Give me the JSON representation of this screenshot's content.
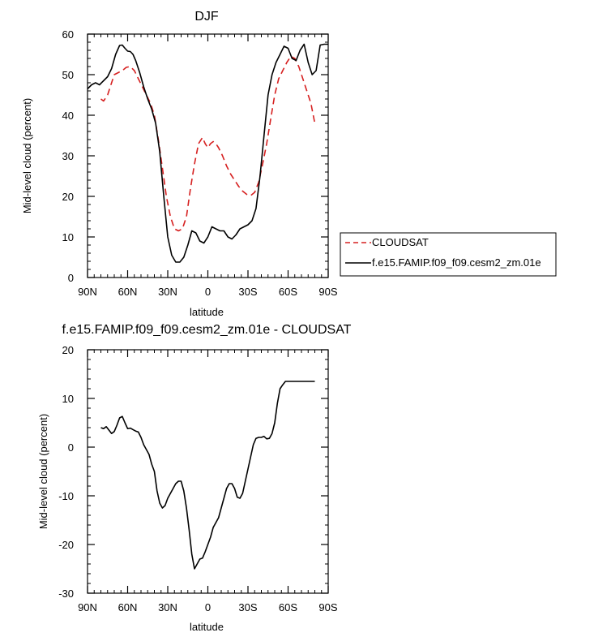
{
  "chart_data": [
    {
      "type": "line",
      "title": "DJF",
      "xlabel": "latitude",
      "ylabel": "Mid-level cloud (percent)",
      "xlim": [
        -90,
        90
      ],
      "ylim": [
        0,
        60
      ],
      "x_ticks": [
        -90,
        -60,
        -30,
        0,
        30,
        60,
        90
      ],
      "x_tick_labels": [
        "90N",
        "60N",
        "30N",
        "0",
        "30S",
        "60S",
        "90S"
      ],
      "y_ticks": [
        0,
        10,
        20,
        30,
        40,
        50,
        60
      ],
      "y_tick_labels": [
        "0",
        "10",
        "20",
        "30",
        "40",
        "50",
        "60"
      ],
      "legend": {
        "placement": "outside-right"
      },
      "series": [
        {
          "name": "CLOUDSAT",
          "color": "#d62020",
          "style": "dashed",
          "x": [
            -80,
            -78,
            -75,
            -72,
            -70,
            -67,
            -64,
            -61,
            -58,
            -55,
            -52,
            -49,
            -46,
            -43,
            -40,
            -37,
            -34,
            -31,
            -28,
            -25,
            -22,
            -19,
            -16,
            -13,
            -10,
            -7,
            -4,
            -2,
            0,
            2,
            4,
            6,
            8,
            11,
            14,
            17,
            20,
            23,
            26,
            29,
            32,
            35,
            38,
            41,
            44,
            47,
            50,
            53,
            56,
            59,
            62,
            65,
            68,
            71,
            74,
            77,
            80
          ],
          "y": [
            44,
            43.5,
            45,
            48,
            50,
            50.5,
            51,
            51.8,
            52,
            51,
            49,
            47,
            45,
            43,
            40,
            34,
            27,
            20,
            15,
            12,
            11.5,
            12,
            15,
            22,
            28,
            33,
            34.5,
            33,
            32,
            33,
            33.5,
            33,
            32,
            30,
            27.5,
            25.5,
            24,
            22.5,
            21.3,
            20.5,
            20.2,
            21,
            23.5,
            28,
            33,
            39,
            45,
            49,
            51,
            53,
            54.5,
            54,
            52,
            49,
            46,
            43,
            38
          ]
        },
        {
          "name": "f.e15.FAMIP.f09_f09.cesm2_zm.01e",
          "color": "#000000",
          "style": "solid",
          "x": [
            -90,
            -87,
            -84,
            -81,
            -78,
            -75,
            -72,
            -69,
            -66,
            -64,
            -62,
            -60,
            -58,
            -56,
            -54,
            -51,
            -48,
            -45,
            -42,
            -39,
            -36,
            -33,
            -30,
            -27,
            -24,
            -21,
            -18,
            -15,
            -12,
            -9,
            -6,
            -3,
            0,
            3,
            6,
            9,
            12,
            15,
            18,
            21,
            24,
            27,
            30,
            33,
            36,
            39,
            42,
            45,
            48,
            51,
            54,
            57,
            60,
            63,
            66,
            69,
            72,
            75,
            78,
            81,
            84,
            87,
            90
          ],
          "y": [
            46.5,
            47.5,
            48,
            47.5,
            48.5,
            49.5,
            51.5,
            55,
            57.2,
            57.3,
            56.5,
            55.8,
            55.7,
            55,
            53.5,
            50.5,
            47,
            44,
            41.5,
            38,
            31,
            20,
            10,
            5.5,
            3.8,
            3.8,
            5,
            8,
            11.5,
            11,
            9,
            8.5,
            10,
            12.5,
            12,
            11.5,
            11.5,
            10,
            9.5,
            10.5,
            12,
            12.5,
            13,
            14,
            17,
            25,
            35,
            45,
            50,
            53,
            55,
            57,
            56.5,
            54,
            53.5,
            56,
            57.5,
            53,
            50,
            51,
            57.3,
            57.5,
            57.5
          ]
        }
      ]
    },
    {
      "type": "line",
      "title": "f.e15.FAMIP.f09_f09.cesm2_zm.01e - CLOUDSAT",
      "xlabel": "latitude",
      "ylabel": "Mid-level cloud (percent)",
      "xlim": [
        -90,
        90
      ],
      "ylim": [
        -30,
        20
      ],
      "x_ticks": [
        -90,
        -60,
        -30,
        0,
        30,
        60,
        90
      ],
      "x_tick_labels": [
        "90N",
        "60N",
        "30N",
        "0",
        "30S",
        "60S",
        "90S"
      ],
      "y_ticks": [
        -30,
        -20,
        -10,
        0,
        10,
        20
      ],
      "y_tick_labels": [
        "-30",
        "-20",
        "-10",
        "0",
        "10",
        "20"
      ],
      "series": [
        {
          "color": "#000000",
          "style": "solid",
          "x": [
            -80,
            -78,
            -76,
            -74,
            -72,
            -70,
            -68,
            -66,
            -64,
            -62,
            -60,
            -58,
            -56,
            -54,
            -52,
            -50,
            -48,
            -46,
            -44,
            -42,
            -40,
            -38,
            -36,
            -34,
            -32,
            -30,
            -28,
            -26,
            -24,
            -22,
            -20,
            -18,
            -16,
            -14,
            -12,
            -10,
            -8,
            -6,
            -4,
            -2,
            0,
            2,
            4,
            6,
            8,
            10,
            12,
            14,
            16,
            18,
            20,
            22,
            24,
            26,
            28,
            30,
            32,
            34,
            36,
            38,
            40,
            42,
            44,
            46,
            48,
            50,
            52,
            54,
            56,
            58,
            60,
            62,
            64,
            66,
            68,
            70,
            72,
            74,
            76,
            78,
            80
          ],
          "y": [
            4,
            3.8,
            4.2,
            3.5,
            2.8,
            3.2,
            4.5,
            6,
            6.3,
            5,
            3.8,
            3.9,
            3.6,
            3.3,
            3.1,
            2,
            0.5,
            -0.5,
            -1.5,
            -3.5,
            -5,
            -9,
            -11.5,
            -12.5,
            -12,
            -10.5,
            -9.5,
            -8.5,
            -7.5,
            -7,
            -7,
            -9,
            -12.5,
            -17,
            -22,
            -25,
            -24,
            -23,
            -22.8,
            -21.5,
            -20,
            -18.5,
            -16.5,
            -15.5,
            -14.5,
            -12.5,
            -10.5,
            -8.5,
            -7.5,
            -7.5,
            -8.5,
            -10.3,
            -10.5,
            -9.5,
            -7,
            -4.5,
            -2,
            0.5,
            1.8,
            2,
            2,
            2.2,
            1.7,
            1.8,
            2.8,
            5,
            9,
            12,
            12.8,
            13.5,
            13.5,
            13.5,
            13.5,
            13.5,
            13.5,
            13.5,
            13.5,
            13.5,
            13.5,
            13.5,
            13.5
          ]
        }
      ]
    }
  ]
}
